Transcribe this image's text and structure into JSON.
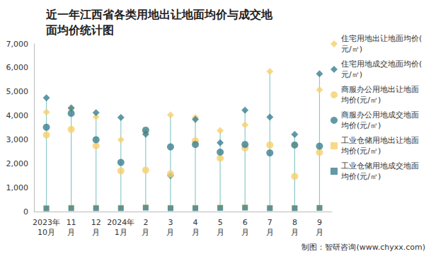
{
  "chart_data": {
    "type": "scatter",
    "title": "近一年江西省各类用地出让地面均价与成交地面均价统计图",
    "categories": [
      "2023年\n10月",
      "11\n月",
      "12\n月",
      "2024年\n1月",
      "2\n月",
      "3\n月",
      "4\n月",
      "5\n月",
      "6\n月",
      "7\n月",
      "8\n月",
      "9\n月"
    ],
    "series": [
      {
        "name": "住宅用地出让地面均价(元/㎡)",
        "color": "#f8d06a",
        "marker": "diamond",
        "values": [
          4150,
          4280,
          3950,
          3000,
          3300,
          4030,
          3930,
          3380,
          3620,
          5850,
          2790,
          5080
        ]
      },
      {
        "name": "住宅用地成交地面均价(元/㎡)",
        "color": "#3b7f8f",
        "marker": "diamond",
        "values": [
          4750,
          4330,
          4130,
          3930,
          3230,
          1500,
          3850,
          2870,
          4230,
          3940,
          3220,
          5750
        ]
      },
      {
        "name": "商服办公用地出让地面均价(元/㎡)",
        "color": "#f8d06a",
        "marker": "circle",
        "values": [
          3200,
          3430,
          2750,
          1700,
          1730,
          1570,
          2950,
          2230,
          2650,
          2780,
          1470,
          2470
        ]
      },
      {
        "name": "商服办公用地成交地面均价(元/㎡)",
        "color": "#3b7f8f",
        "marker": "circle",
        "values": [
          3520,
          4100,
          3000,
          2050,
          3400,
          2700,
          2800,
          2480,
          2800,
          2450,
          2780,
          2730
        ]
      },
      {
        "name": "工业仓储用地出让地面均价(元/㎡)",
        "color": "#f8d06a",
        "marker": "square",
        "values": [
          150,
          160,
          160,
          160,
          180,
          160,
          160,
          170,
          180,
          160,
          150,
          160
        ]
      },
      {
        "name": "工业仓储用地成交地面均价(元/㎡)",
        "color": "#3b7f8f",
        "marker": "square",
        "values": [
          130,
          140,
          140,
          140,
          160,
          140,
          140,
          150,
          160,
          140,
          140,
          150
        ]
      }
    ],
    "ylim": [
      0,
      7000
    ],
    "yticks": [
      0,
      1000,
      2000,
      3000,
      4000,
      5000,
      6000,
      7000
    ],
    "grid": false,
    "legend": "right",
    "annotations": [
      "制图：智研咨询(www.chyxx.com)"
    ]
  }
}
